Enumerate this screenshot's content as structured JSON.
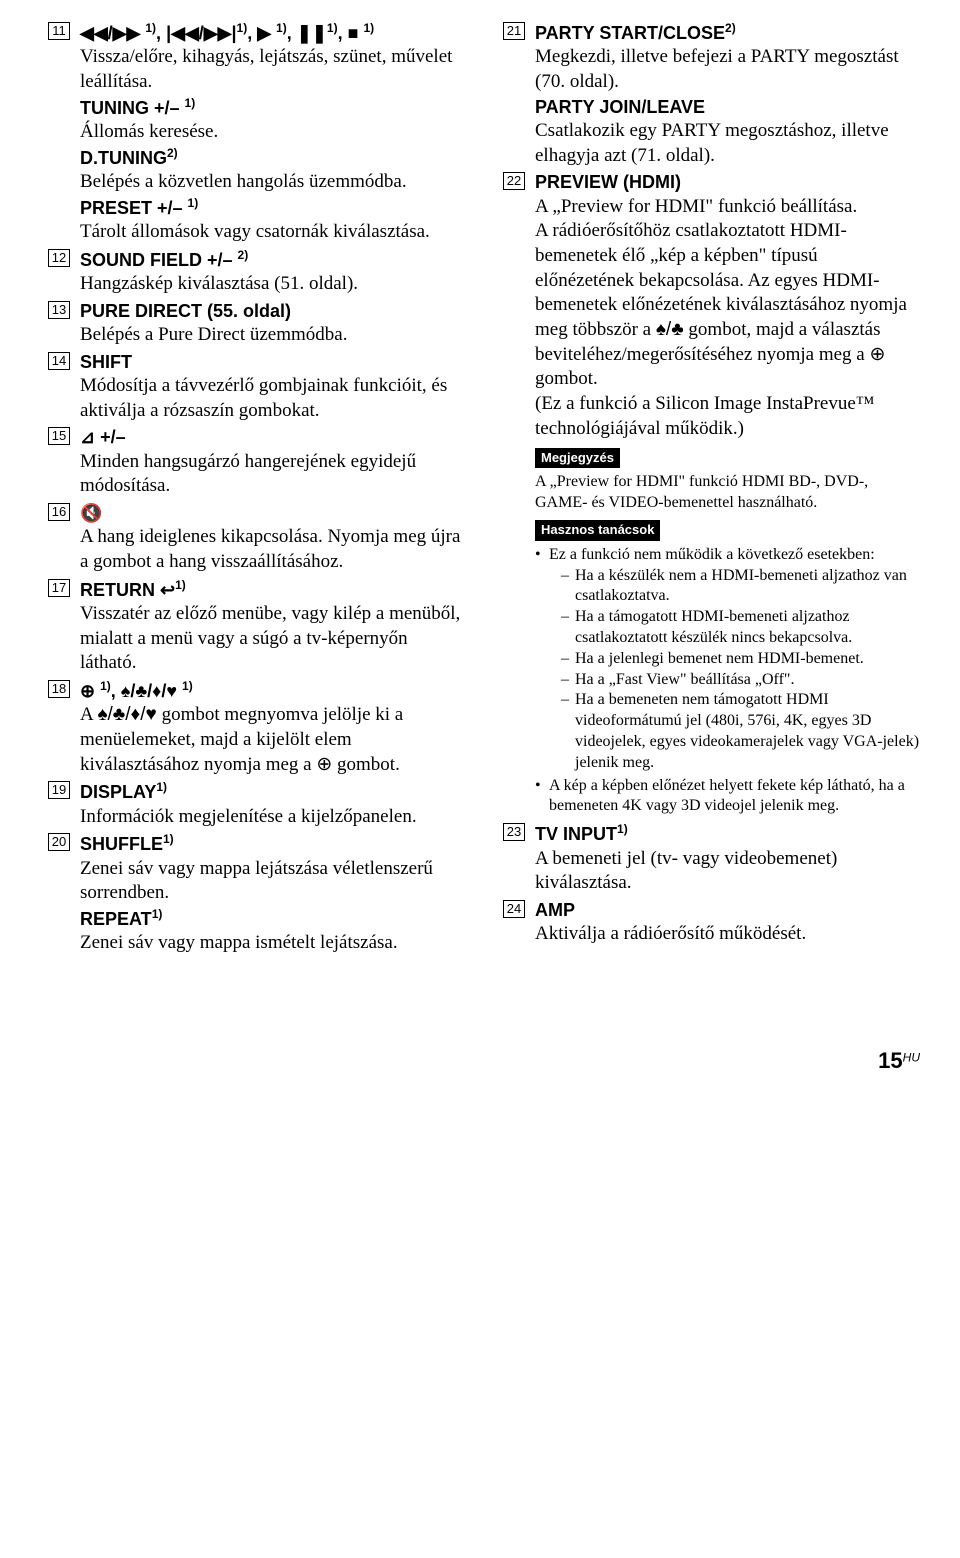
{
  "left": [
    {
      "num": "11",
      "heading_html": "<span class='sym'>◀◀/▶▶ </span><span class='sup'>1)</span>, <span class='sym'>|◀◀/▶▶|</span><span class='sup'>1)</span>, <span class='sym'>▶ </span><span class='sup'>1)</span>, <span class='sym'>❚❚</span><span class='sup'>1)</span>, <span class='sym'>■ </span><span class='sup'>1)</span>",
      "paras": [
        "Vissza/előre, kihagyás, lejátszás, szünet, művelet leállítása."
      ],
      "extra": [
        {
          "heading_html": "TUNING +/– <span class='sup'>1)</span>",
          "paras": [
            "Állomás keresése."
          ]
        },
        {
          "heading_html": "D.TUNING<span class='sup'>2)</span>",
          "paras": [
            "Belépés a közvetlen hangolás üzemmódba."
          ]
        },
        {
          "heading_html": "PRESET +/– <span class='sup'>1)</span>",
          "paras": [
            "Tárolt állomások vagy csatornák kiválasztása."
          ]
        }
      ]
    },
    {
      "num": "12",
      "heading_html": "SOUND FIELD +/– <span class='sup'>2)</span>",
      "paras": [
        "Hangzáskép kiválasztása (51. oldal)."
      ]
    },
    {
      "num": "13",
      "heading_html": "PURE DIRECT (55. oldal)",
      "paras": [
        "Belépés a Pure Direct üzemmódba."
      ]
    },
    {
      "num": "14",
      "heading_html": "SHIFT",
      "paras": [
        "Módosítja a távvezérlő gombjainak funkcióit, és aktiválja a rózsaszín gombokat."
      ]
    },
    {
      "num": "15",
      "heading_html": "<span class='sym'>⊿</span> +/–",
      "paras": [
        "Minden hangsugárzó hangerejének egyidejű módosítása."
      ]
    },
    {
      "num": "16",
      "heading_html": "<span class='sym'>🔇</span>",
      "paras": [
        "A hang ideiglenes kikapcsolása. Nyomja meg újra a gombot a hang visszaállításához."
      ]
    },
    {
      "num": "17",
      "heading_html": "RETURN <span class='sym'>↩</span><span class='sup'>1)</span>",
      "paras": [
        "Visszatér az előző menübe, vagy kilép a menüből, mialatt a menü vagy a súgó a tv-képernyőn látható."
      ]
    },
    {
      "num": "18",
      "heading_html": "<span class='sym'>⊕ </span><span class='sup'>1)</span>, <span class='sym'>♠/♣/♦/♥ </span><span class='sup'>1)</span>",
      "paras": [
        "A <span class='sym'>♠/♣/♦/♥</span> gombot megnyomva jelölje ki a menüelemeket, majd a kijelölt elem kiválasztásához nyomja meg a <span class='sym'>⊕</span> gombot."
      ]
    },
    {
      "num": "19",
      "heading_html": "DISPLAY<span class='sup'>1)</span>",
      "paras": [
        "Információk megjelenítése a kijelzőpanelen."
      ]
    },
    {
      "num": "20",
      "heading_html": "SHUFFLE<span class='sup'>1)</span>",
      "paras": [
        "Zenei sáv vagy mappa lejátszása véletlenszerű sorrendben."
      ],
      "extra": [
        {
          "heading_html": "REPEAT<span class='sup'>1)</span>",
          "paras": [
            "Zenei sáv vagy mappa ismételt lejátszása."
          ]
        }
      ]
    }
  ],
  "right": [
    {
      "num": "21",
      "heading_html": "PARTY START/CLOSE<span class='sup'>2)</span>",
      "paras": [
        "Megkezdi, illetve befejezi a PARTY megosztást (70. oldal)."
      ],
      "extra": [
        {
          "heading_html": "PARTY JOIN/LEAVE",
          "paras": [
            "Csatlakozik egy PARTY megosztáshoz, illetve elhagyja azt (71. oldal)."
          ]
        }
      ]
    },
    {
      "num": "22",
      "heading_html": "PREVIEW (HDMI)",
      "paras": [
        "A „Preview for HDMI\" funkció beállítása.",
        "A rádióerősítőhöz csatlakoztatott HDMI-bemenetek élő „kép a képben\" típusú előnézetének bekapcsolása. Az egyes HDMI-bemenetek előnézetének kiválasztásához nyomja meg többször a <span class='sym'>♠/♣</span> gombot, majd a választás beviteléhez/megerősítéséhez nyomja meg a <span class='sym'>⊕</span> gombot.",
        "(Ez a funkció a Silicon Image InstaPrevue™ technológiájával működik.)"
      ],
      "note": {
        "label": "Megjegyzés",
        "text": "A „Preview for HDMI\" funkció HDMI BD-, DVD-, GAME- és VIDEO-bemenettel használható."
      },
      "tips": {
        "label": "Hasznos tanácsok",
        "bullets": [
          {
            "text": "Ez a funkció nem működik a következő esetekben:",
            "sub": [
              "Ha a készülék nem a HDMI-bemeneti aljzathoz van csatlakoztatva.",
              "Ha a támogatott HDMI-bemeneti aljzathoz csatlakoztatott készülék nincs bekapcsolva.",
              "Ha a jelenlegi bemenet nem HDMI-bemenet.",
              "Ha a „Fast View\" beállítása „Off\".",
              "Ha a bemeneten nem támogatott HDMI videoformátumú jel (480i, 576i, 4K, egyes 3D videojelek, egyes videokamerajelek vagy VGA-jelek) jelenik meg."
            ]
          },
          {
            "text": "A kép a képben előnézet helyett fekete kép látható, ha a bemeneten 4K vagy 3D videojel jelenik meg."
          }
        ]
      }
    },
    {
      "num": "23",
      "heading_html": "TV INPUT<span class='sup'>1)</span>",
      "paras": [
        "A bemeneti jel (tv- vagy videobemenet) kiválasztása."
      ]
    },
    {
      "num": "24",
      "heading_html": "AMP",
      "paras": [
        "Aktiválja a rádióerősítő működését."
      ]
    }
  ],
  "footer": {
    "page": "15",
    "lang": "HU"
  }
}
